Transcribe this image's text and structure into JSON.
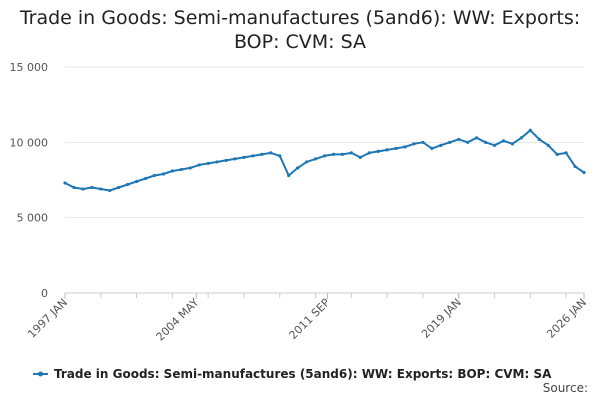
{
  "chart_data": {
    "type": "line",
    "title": "Trade in Goods: Semi-manufactures (5and6): WW: Exports: BOP: CVM: SA",
    "xlabel": "",
    "ylabel": "",
    "x_ticks": [
      "1997 JAN",
      "2004 MAY",
      "2011 SEP",
      "2019 JAN",
      "2026 JAN"
    ],
    "y_ticks": [
      "0",
      "5 000",
      "10 000",
      "15 000"
    ],
    "ylim": [
      0,
      15000
    ],
    "xlim": [
      "1997-01",
      "2026-01"
    ],
    "grid": true,
    "legend_position": "bottom",
    "series_color": "#1f77b4",
    "series": [
      {
        "name": "Trade in Goods: Semi-manufactures (5and6): WW: Exports: BOP: CVM: SA",
        "x": [
          "1997-01",
          "1997-07",
          "1998-01",
          "1998-07",
          "1999-01",
          "1999-07",
          "2000-01",
          "2000-07",
          "2001-01",
          "2001-07",
          "2002-01",
          "2002-07",
          "2003-01",
          "2003-07",
          "2004-01",
          "2004-07",
          "2005-01",
          "2005-07",
          "2006-01",
          "2006-07",
          "2007-01",
          "2007-07",
          "2008-01",
          "2008-07",
          "2009-01",
          "2009-07",
          "2010-01",
          "2010-07",
          "2011-01",
          "2011-07",
          "2012-01",
          "2012-07",
          "2013-01",
          "2013-07",
          "2014-01",
          "2014-07",
          "2015-01",
          "2015-07",
          "2016-01",
          "2016-07",
          "2017-01",
          "2017-07",
          "2018-01",
          "2018-07",
          "2019-01",
          "2019-07",
          "2020-01",
          "2020-07",
          "2021-01",
          "2021-07",
          "2022-01",
          "2022-07",
          "2023-01",
          "2023-07",
          "2024-01",
          "2024-07",
          "2025-01",
          "2025-07",
          "2026-01"
        ],
        "values": [
          7300,
          7000,
          6900,
          7000,
          6900,
          6800,
          7000,
          7200,
          7400,
          7600,
          7800,
          7900,
          8100,
          8200,
          8300,
          8500,
          8600,
          8700,
          8800,
          8900,
          9000,
          9100,
          9200,
          9300,
          9100,
          7800,
          8300,
          8700,
          8900,
          9100,
          9200,
          9200,
          9300,
          9000,
          9300,
          9400,
          9500,
          9600,
          9700,
          9900,
          10000,
          9600,
          9800,
          10000,
          10200,
          10000,
          10300,
          10000,
          9800,
          10100,
          9900,
          10300,
          10800,
          10200,
          9800,
          9200,
          9300,
          8400,
          8000
        ]
      }
    ]
  }
}
